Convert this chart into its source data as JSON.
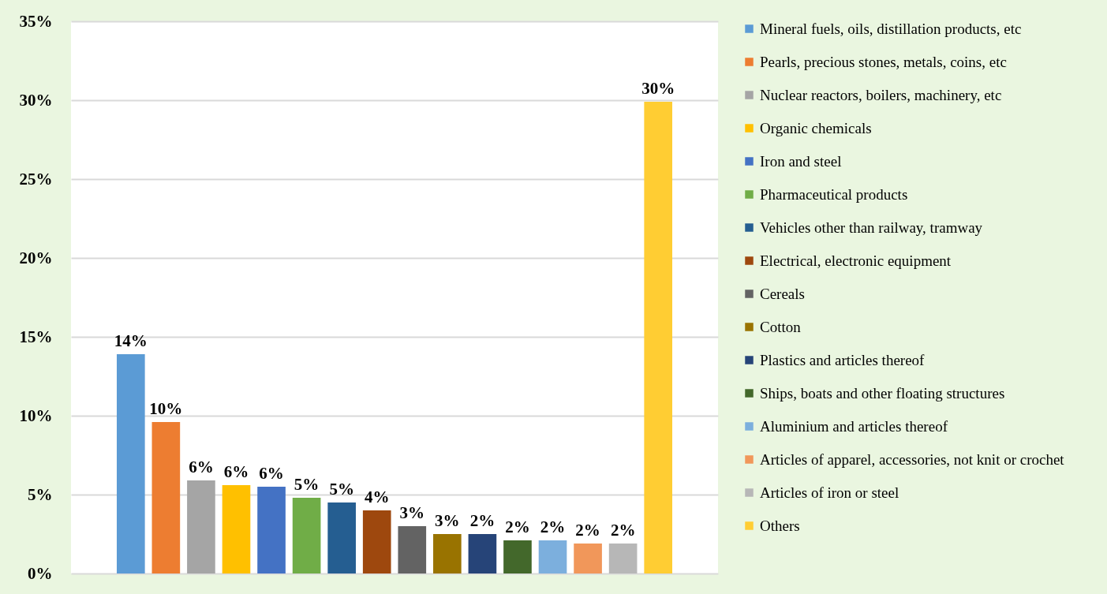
{
  "chart_data": {
    "type": "bar",
    "categories": [
      null
    ],
    "series": [
      {
        "name": "Mineral fuels, oils, distillation products, etc",
        "color": "#5b9bd5",
        "values": [
          13.9
        ],
        "value_labels": [
          "14%"
        ]
      },
      {
        "name": "Pearls, precious stones, metals, coins, etc",
        "color": "#ed7d31",
        "values": [
          9.6
        ],
        "value_labels": [
          "10%"
        ]
      },
      {
        "name": "Nuclear reactors, boilers, machinery, etc",
        "color": "#a5a5a5",
        "values": [
          5.9
        ],
        "value_labels": [
          "6%"
        ]
      },
      {
        "name": "Organic chemicals",
        "color": "#ffc000",
        "values": [
          5.6
        ],
        "value_labels": [
          "6%"
        ]
      },
      {
        "name": "Iron and steel",
        "color": "#4472c4",
        "values": [
          5.5
        ],
        "value_labels": [
          "6%"
        ]
      },
      {
        "name": "Pharmaceutical products",
        "color": "#70ad47",
        "values": [
          4.8
        ],
        "value_labels": [
          "5%"
        ]
      },
      {
        "name": "Vehicles other than railway, tramway",
        "color": "#255e91",
        "values": [
          4.5
        ],
        "value_labels": [
          "5%"
        ]
      },
      {
        "name": "Electrical, electronic equipment",
        "color": "#9e480e",
        "values": [
          4.0
        ],
        "value_labels": [
          "4%"
        ]
      },
      {
        "name": "Cereals",
        "color": "#636363",
        "values": [
          3.0
        ],
        "value_labels": [
          "3%"
        ]
      },
      {
        "name": "Cotton",
        "color": "#997300",
        "values": [
          2.5
        ],
        "value_labels": [
          "3%"
        ]
      },
      {
        "name": "Plastics and articles thereof",
        "color": "#264478",
        "values": [
          2.5
        ],
        "value_labels": [
          "2%"
        ]
      },
      {
        "name": "Ships, boats and other floating structures",
        "color": "#43682b",
        "values": [
          2.1
        ],
        "value_labels": [
          "2%"
        ]
      },
      {
        "name": "Aluminium and articles thereof",
        "color": "#7cafdd",
        "values": [
          2.1
        ],
        "value_labels": [
          "2%"
        ]
      },
      {
        "name": "Articles of apparel, accessories, not knit or crochet",
        "color": "#f1975a",
        "values": [
          1.9
        ],
        "value_labels": [
          "2%"
        ]
      },
      {
        "name": "Articles of iron or steel",
        "color": "#b7b7b7",
        "values": [
          1.9
        ],
        "value_labels": [
          "2%"
        ]
      },
      {
        "name": "Others",
        "color": "#ffcd33",
        "values": [
          29.9
        ],
        "value_labels": [
          "30%"
        ]
      }
    ],
    "ylim": [
      0,
      35
    ],
    "yticks": [
      {
        "value": 0,
        "label": "0%"
      },
      {
        "value": 5,
        "label": "5%"
      },
      {
        "value": 10,
        "label": "10%"
      },
      {
        "value": 15,
        "label": "15%"
      },
      {
        "value": 20,
        "label": "20%"
      },
      {
        "value": 25,
        "label": "25%"
      },
      {
        "value": 30,
        "label": "30%"
      },
      {
        "value": 35,
        "label": "35%"
      }
    ],
    "grid": "y",
    "legend": "right",
    "tick_labels": "y"
  }
}
